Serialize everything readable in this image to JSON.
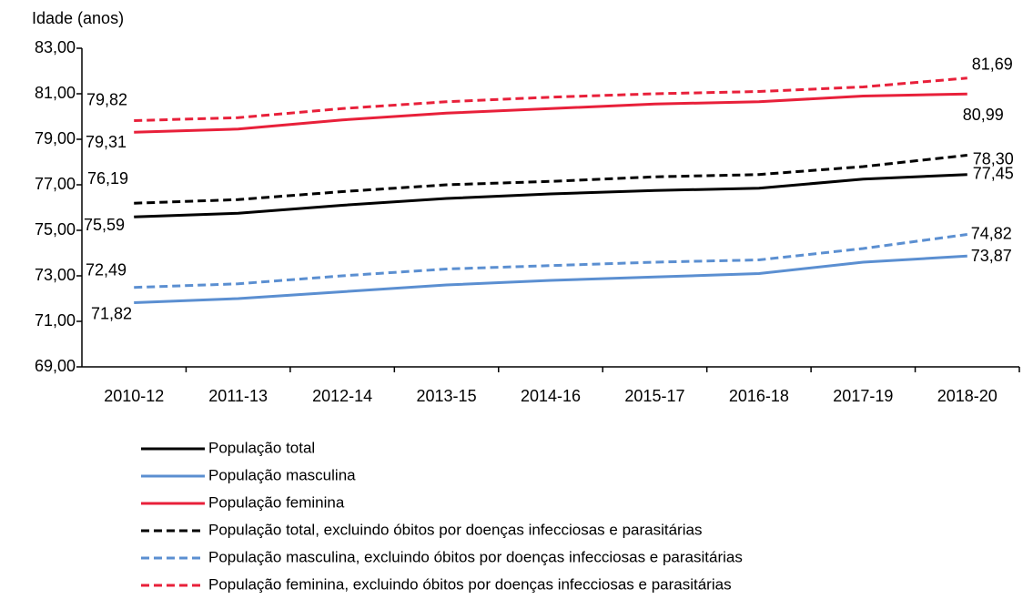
{
  "chart_data": {
    "type": "line",
    "y_axis_label": "Idade (anos)",
    "categories": [
      "2010-12",
      "2011-13",
      "2012-14",
      "2013-15",
      "2014-16",
      "2015-17",
      "2016-18",
      "2017-19",
      "2018-20"
    ],
    "ylim": [
      69,
      83
    ],
    "yticks": [
      {
        "value": 69,
        "label": "69,00"
      },
      {
        "value": 71,
        "label": "71,00"
      },
      {
        "value": 73,
        "label": "73,00"
      },
      {
        "value": 75,
        "label": "75,00"
      },
      {
        "value": 77,
        "label": "77,00"
      },
      {
        "value": 79,
        "label": "79,00"
      },
      {
        "value": 81,
        "label": "81,00"
      },
      {
        "value": 83,
        "label": "83,00"
      }
    ],
    "grid": false,
    "legend": "bottom",
    "series": [
      {
        "name": "População total",
        "color": "#000000",
        "style": "solid",
        "values": [
          75.59,
          75.75,
          76.1,
          76.4,
          76.6,
          76.75,
          76.85,
          77.25,
          77.45
        ],
        "value_labels": [
          "75,59",
          null,
          null,
          null,
          null,
          null,
          null,
          null,
          "77,45"
        ]
      },
      {
        "name": "População masculina",
        "color": "#5b8fd1",
        "style": "solid",
        "values": [
          71.82,
          72.0,
          72.3,
          72.6,
          72.8,
          72.95,
          73.1,
          73.6,
          73.87
        ],
        "value_labels": [
          "71,82",
          null,
          null,
          null,
          null,
          null,
          null,
          null,
          "73,87"
        ]
      },
      {
        "name": "População feminina",
        "color": "#e8203a",
        "style": "solid",
        "values": [
          79.31,
          79.45,
          79.85,
          80.15,
          80.35,
          80.55,
          80.65,
          80.9,
          80.99
        ],
        "value_labels": [
          "79,31",
          null,
          null,
          null,
          null,
          null,
          null,
          null,
          "80,99"
        ]
      },
      {
        "name": "População total, excluindo óbitos por doenças infecciosas e parasitárias",
        "color": "#000000",
        "style": "dashed",
        "values": [
          76.19,
          76.35,
          76.7,
          77.0,
          77.15,
          77.35,
          77.45,
          77.8,
          78.3
        ],
        "value_labels": [
          "76,19",
          null,
          null,
          null,
          null,
          null,
          null,
          null,
          "78,30"
        ]
      },
      {
        "name": "População masculina, excluindo óbitos por doenças infecciosas e parasitárias",
        "color": "#5b8fd1",
        "style": "dashed",
        "values": [
          72.49,
          72.65,
          73.0,
          73.3,
          73.45,
          73.6,
          73.7,
          74.2,
          74.82
        ],
        "value_labels": [
          "72,49",
          null,
          null,
          null,
          null,
          null,
          null,
          null,
          "74,82"
        ]
      },
      {
        "name": "População feminina, excluindo óbitos por doenças infecciosas e parasitárias",
        "color": "#e8203a",
        "style": "dashed",
        "values": [
          79.82,
          79.95,
          80.35,
          80.65,
          80.85,
          81.0,
          81.1,
          81.3,
          81.69
        ],
        "value_labels": [
          "79,82",
          null,
          null,
          null,
          null,
          null,
          null,
          null,
          "81,69"
        ]
      }
    ]
  }
}
